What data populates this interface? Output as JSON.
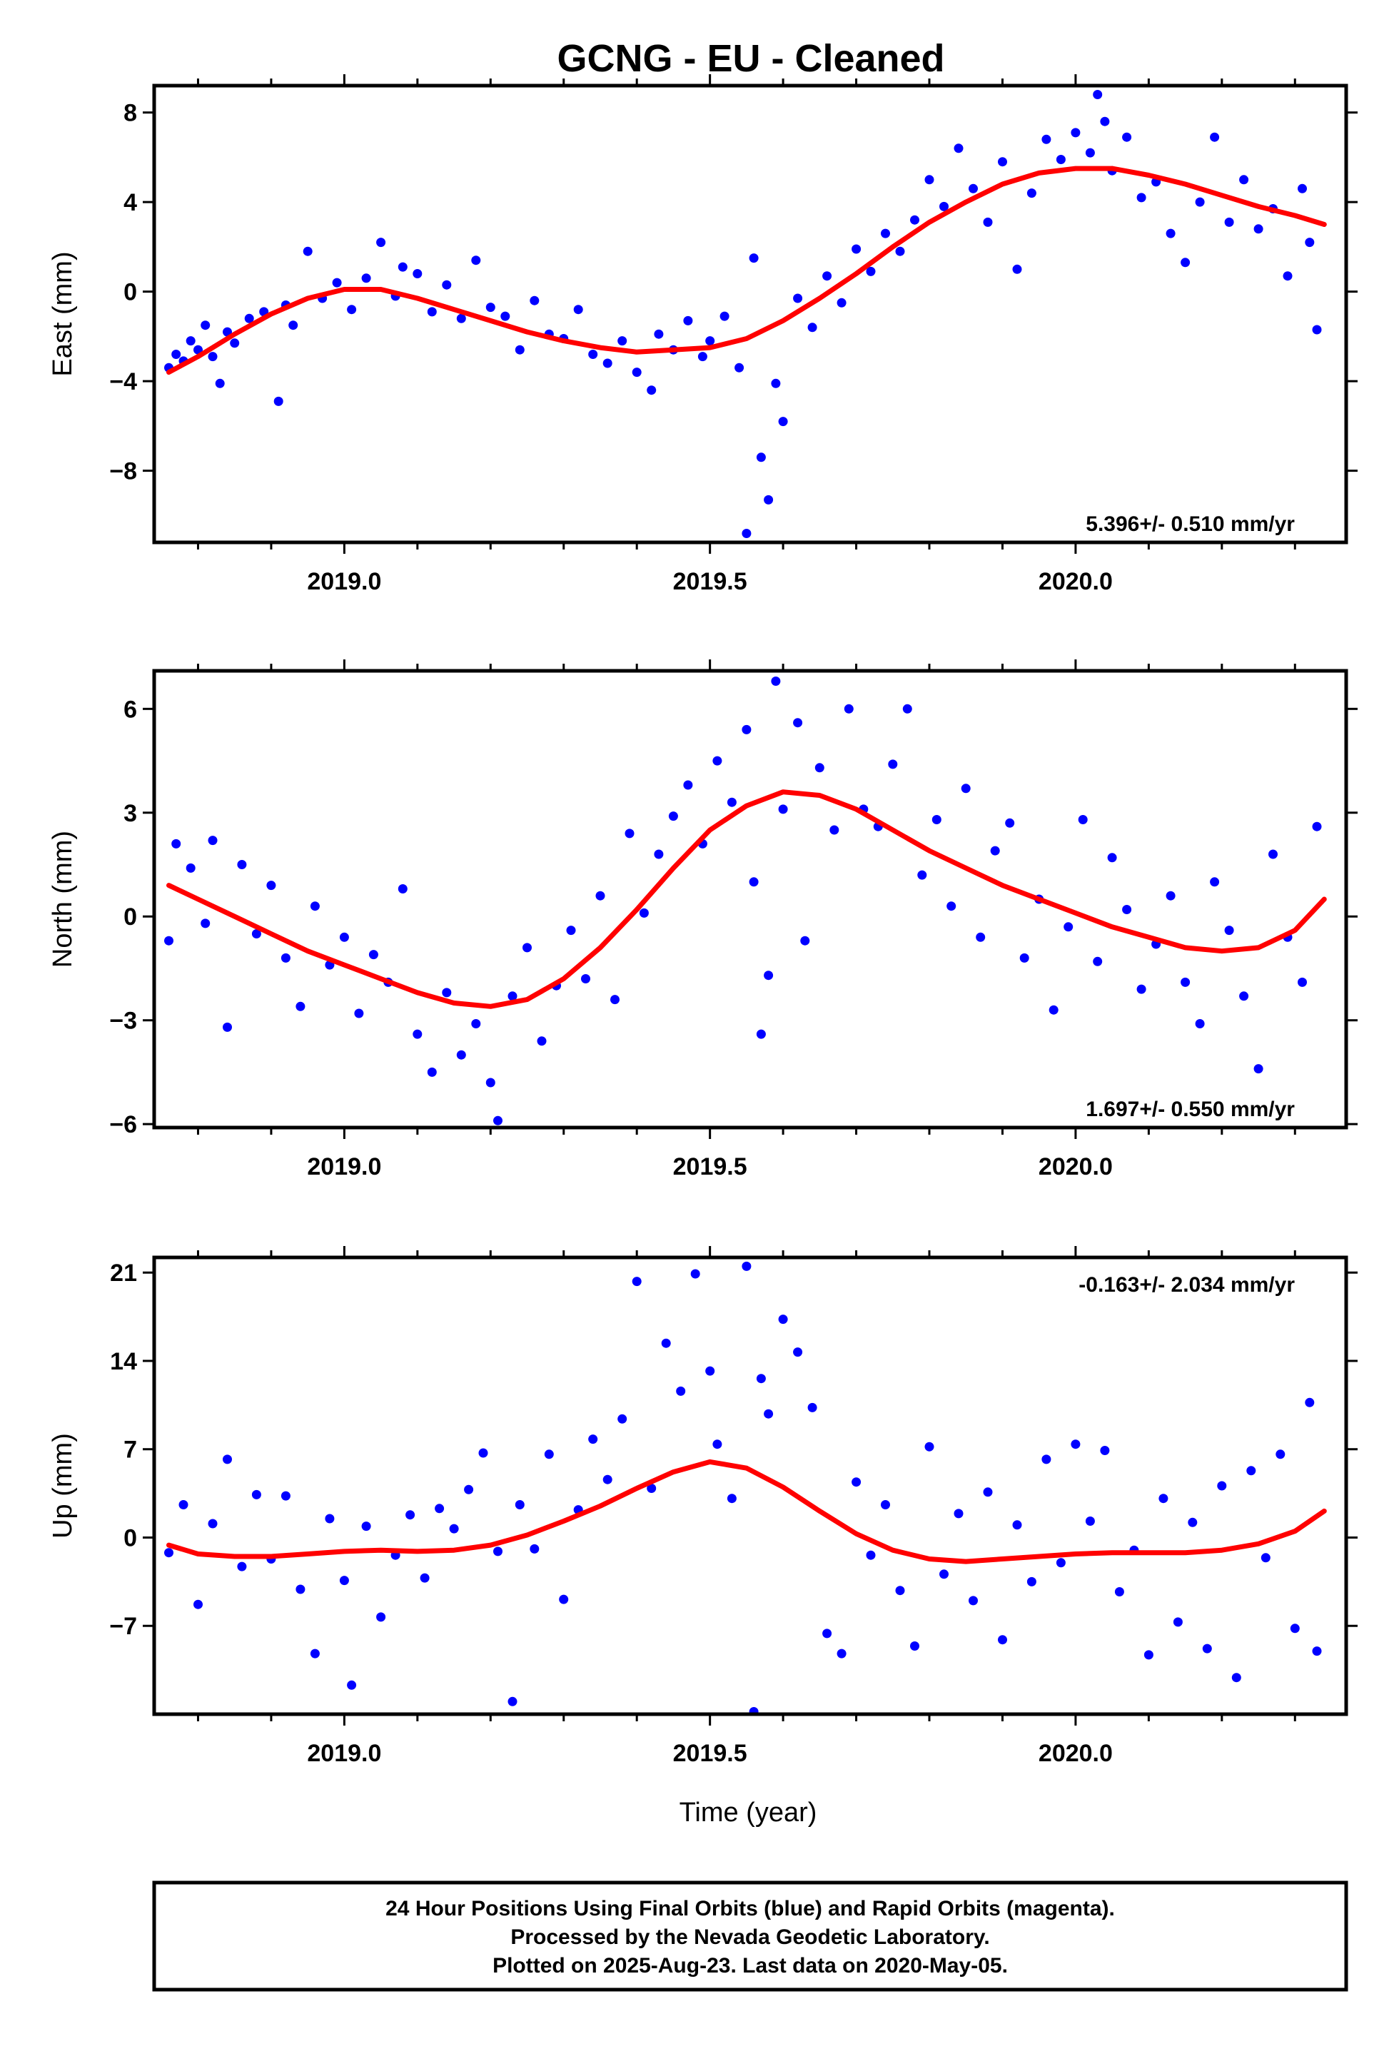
{
  "title": "GCNG  - EU - Cleaned",
  "footer": {
    "lines": [
      "24 Hour Positions Using Final Orbits (blue) and Rapid Orbits (magenta).",
      "Processed by the Nevada Geodetic Laboratory.",
      "Plotted on 2025-Aug-23. Last data on 2020-May-05."
    ]
  },
  "colors": {
    "points": "#0000ff",
    "fit": "#ff0000",
    "frame": "#000000"
  },
  "chart_data": [
    {
      "type": "scatter",
      "component": "East",
      "ylabel": "East (mm)",
      "xlabel": "",
      "xlim": [
        2018.74,
        2020.37
      ],
      "ylim": [
        -11.2,
        9.2
      ],
      "xticks": [
        2019.0,
        2019.5,
        2020.0
      ],
      "xtick_labels": [
        "2019.0",
        "2019.5",
        "2020.0"
      ],
      "yticks": [
        -8,
        -4,
        0,
        4,
        8
      ],
      "ytick_labels": [
        "−8",
        "−4",
        "0",
        "4",
        "8"
      ],
      "rate": "5.396+/- 0.510 mm/yr",
      "rate_position": "bottom-right",
      "grid": false,
      "series": [
        {
          "kind": "points",
          "x": [
            2018.76,
            2018.77,
            2018.78,
            2018.79,
            2018.8,
            2018.81,
            2018.82,
            2018.83,
            2018.84,
            2018.85,
            2018.87,
            2018.89,
            2018.91,
            2018.92,
            2018.93,
            2018.95,
            2018.97,
            2018.99,
            2019.01,
            2019.03,
            2019.05,
            2019.07,
            2019.08,
            2019.1,
            2019.12,
            2019.14,
            2019.16,
            2019.18,
            2019.2,
            2019.22,
            2019.24,
            2019.26,
            2019.28,
            2019.3,
            2019.32,
            2019.34,
            2019.36,
            2019.38,
            2019.4,
            2019.42,
            2019.43,
            2019.45,
            2019.47,
            2019.49,
            2019.5,
            2019.52,
            2019.54,
            2019.55,
            2019.56,
            2019.57,
            2019.58,
            2019.59,
            2019.6,
            2019.62,
            2019.64,
            2019.66,
            2019.68,
            2019.7,
            2019.72,
            2019.74,
            2019.76,
            2019.78,
            2019.8,
            2019.82,
            2019.84,
            2019.86,
            2019.88,
            2019.9,
            2019.92,
            2019.94,
            2019.96,
            2019.98,
            2020.0,
            2020.02,
            2020.03,
            2020.04,
            2020.05,
            2020.07,
            2020.09,
            2020.11,
            2020.13,
            2020.15,
            2020.17,
            2020.19,
            2020.21,
            2020.23,
            2020.25,
            2020.27,
            2020.29,
            2020.31,
            2020.32,
            2020.33
          ],
          "y": [
            -3.4,
            -2.8,
            -3.1,
            -2.2,
            -2.6,
            -1.5,
            -2.9,
            -4.1,
            -1.8,
            -2.3,
            -1.2,
            -0.9,
            -4.9,
            -0.6,
            -1.5,
            1.8,
            -0.3,
            0.4,
            -0.8,
            0.6,
            2.2,
            -0.2,
            1.1,
            0.8,
            -0.9,
            0.3,
            -1.2,
            1.4,
            -0.7,
            -1.1,
            -2.6,
            -0.4,
            -1.9,
            -2.1,
            -0.8,
            -2.8,
            -3.2,
            -2.2,
            -3.6,
            -4.4,
            -1.9,
            -2.6,
            -1.3,
            -2.9,
            -2.2,
            -1.1,
            -3.4,
            -10.8,
            1.5,
            -7.4,
            -9.3,
            -4.1,
            -5.8,
            -0.3,
            -1.6,
            0.7,
            -0.5,
            1.9,
            0.9,
            2.6,
            1.8,
            3.2,
            5.0,
            3.8,
            6.4,
            4.6,
            3.1,
            5.8,
            1.0,
            4.4,
            6.8,
            5.9,
            7.1,
            6.2,
            8.8,
            7.6,
            5.4,
            6.9,
            4.2,
            4.9,
            2.6,
            1.3,
            4.0,
            6.9,
            3.1,
            5.0,
            2.8,
            3.7,
            0.7,
            4.6,
            2.2,
            -1.7
          ]
        },
        {
          "kind": "fit",
          "x": [
            2018.76,
            2018.8,
            2018.85,
            2018.9,
            2018.95,
            2019.0,
            2019.05,
            2019.1,
            2019.15,
            2019.2,
            2019.25,
            2019.3,
            2019.35,
            2019.4,
            2019.45,
            2019.5,
            2019.55,
            2019.6,
            2019.65,
            2019.7,
            2019.75,
            2019.8,
            2019.85,
            2019.9,
            2019.95,
            2020.0,
            2020.05,
            2020.1,
            2020.15,
            2020.2,
            2020.25,
            2020.3,
            2020.34
          ],
          "y": [
            -3.6,
            -2.9,
            -1.9,
            -1.0,
            -0.3,
            0.1,
            0.1,
            -0.3,
            -0.8,
            -1.3,
            -1.8,
            -2.2,
            -2.5,
            -2.7,
            -2.6,
            -2.5,
            -2.1,
            -1.3,
            -0.3,
            0.8,
            2.0,
            3.1,
            4.0,
            4.8,
            5.3,
            5.5,
            5.5,
            5.2,
            4.8,
            4.3,
            3.8,
            3.4,
            3.0
          ]
        }
      ]
    },
    {
      "type": "scatter",
      "component": "North",
      "ylabel": "North (mm)",
      "xlabel": "",
      "xlim": [
        2018.74,
        2020.37
      ],
      "ylim": [
        -6.1,
        7.1
      ],
      "xticks": [
        2019.0,
        2019.5,
        2020.0
      ],
      "xtick_labels": [
        "2019.0",
        "2019.5",
        "2020.0"
      ],
      "yticks": [
        -6,
        -3,
        0,
        3,
        6
      ],
      "ytick_labels": [
        "−6",
        "−3",
        "0",
        "3",
        "6"
      ],
      "rate": "1.697+/- 0.550 mm/yr",
      "rate_position": "bottom-right",
      "grid": false,
      "series": [
        {
          "kind": "points",
          "x": [
            2018.76,
            2018.77,
            2018.79,
            2018.81,
            2018.82,
            2018.84,
            2018.86,
            2018.88,
            2018.9,
            2018.92,
            2018.94,
            2018.96,
            2018.98,
            2019.0,
            2019.02,
            2019.04,
            2019.06,
            2019.08,
            2019.1,
            2019.12,
            2019.14,
            2019.16,
            2019.18,
            2019.2,
            2019.21,
            2019.23,
            2019.25,
            2019.27,
            2019.29,
            2019.31,
            2019.33,
            2019.35,
            2019.37,
            2019.39,
            2019.41,
            2019.43,
            2019.45,
            2019.47,
            2019.49,
            2019.51,
            2019.53,
            2019.55,
            2019.56,
            2019.57,
            2019.58,
            2019.59,
            2019.6,
            2019.62,
            2019.63,
            2019.65,
            2019.67,
            2019.69,
            2019.71,
            2019.73,
            2019.75,
            2019.77,
            2019.79,
            2019.81,
            2019.83,
            2019.85,
            2019.87,
            2019.89,
            2019.91,
            2019.93,
            2019.95,
            2019.97,
            2019.99,
            2020.01,
            2020.03,
            2020.05,
            2020.07,
            2020.09,
            2020.11,
            2020.13,
            2020.15,
            2020.17,
            2020.19,
            2020.21,
            2020.23,
            2020.25,
            2020.27,
            2020.29,
            2020.31,
            2020.33
          ],
          "y": [
            -0.7,
            2.1,
            1.4,
            -0.2,
            2.2,
            -3.2,
            1.5,
            -0.5,
            0.9,
            -1.2,
            -2.6,
            0.3,
            -1.4,
            -0.6,
            -2.8,
            -1.1,
            -1.9,
            0.8,
            -3.4,
            -4.5,
            -2.2,
            -4.0,
            -3.1,
            -4.8,
            -5.9,
            -2.3,
            -0.9,
            -3.6,
            -2.0,
            -0.4,
            -1.8,
            0.6,
            -2.4,
            2.4,
            0.1,
            1.8,
            2.9,
            3.8,
            2.1,
            4.5,
            3.3,
            5.4,
            1.0,
            -3.4,
            -1.7,
            6.8,
            3.1,
            5.6,
            -0.7,
            4.3,
            2.5,
            6.0,
            3.1,
            2.6,
            4.4,
            6.0,
            1.2,
            2.8,
            0.3,
            3.7,
            -0.6,
            1.9,
            2.7,
            -1.2,
            0.5,
            -2.7,
            -0.3,
            2.8,
            -1.3,
            1.7,
            0.2,
            -2.1,
            -0.8,
            0.6,
            -1.9,
            -3.1,
            1.0,
            -0.4,
            -2.3,
            -4.4,
            1.8,
            -0.6,
            -1.9,
            2.6
          ]
        },
        {
          "kind": "fit",
          "x": [
            2018.76,
            2018.8,
            2018.85,
            2018.9,
            2018.95,
            2019.0,
            2019.05,
            2019.1,
            2019.15,
            2019.2,
            2019.25,
            2019.3,
            2019.35,
            2019.4,
            2019.45,
            2019.5,
            2019.55,
            2019.6,
            2019.65,
            2019.7,
            2019.75,
            2019.8,
            2019.85,
            2019.9,
            2019.95,
            2020.0,
            2020.05,
            2020.1,
            2020.15,
            2020.2,
            2020.25,
            2020.3,
            2020.34
          ],
          "y": [
            0.9,
            0.5,
            0.0,
            -0.5,
            -1.0,
            -1.4,
            -1.8,
            -2.2,
            -2.5,
            -2.6,
            -2.4,
            -1.8,
            -0.9,
            0.2,
            1.4,
            2.5,
            3.2,
            3.6,
            3.5,
            3.1,
            2.5,
            1.9,
            1.4,
            0.9,
            0.5,
            0.1,
            -0.3,
            -0.6,
            -0.9,
            -1.0,
            -0.9,
            -0.4,
            0.5
          ]
        }
      ]
    },
    {
      "type": "scatter",
      "component": "Up",
      "ylabel": "Up (mm)",
      "xlabel": "Time (year)",
      "xlim": [
        2018.74,
        2020.37
      ],
      "ylim": [
        -14,
        22.2
      ],
      "xticks": [
        2019.0,
        2019.5,
        2020.0
      ],
      "xtick_labels": [
        "2019.0",
        "2019.5",
        "2020.0"
      ],
      "yticks": [
        -7,
        0,
        7,
        14,
        21
      ],
      "ytick_labels": [
        "−7",
        "0",
        "7",
        "14",
        "21"
      ],
      "rate": "-0.163+/- 2.034 mm/yr",
      "rate_position": "top-right",
      "grid": false,
      "series": [
        {
          "kind": "points",
          "x": [
            2018.76,
            2018.78,
            2018.8,
            2018.82,
            2018.84,
            2018.86,
            2018.88,
            2018.9,
            2018.92,
            2018.94,
            2018.96,
            2018.98,
            2019.0,
            2019.01,
            2019.03,
            2019.05,
            2019.07,
            2019.09,
            2019.11,
            2019.13,
            2019.15,
            2019.17,
            2019.19,
            2019.21,
            2019.23,
            2019.24,
            2019.26,
            2019.28,
            2019.3,
            2019.32,
            2019.34,
            2019.36,
            2019.38,
            2019.4,
            2019.42,
            2019.44,
            2019.46,
            2019.48,
            2019.5,
            2019.51,
            2019.53,
            2019.55,
            2019.56,
            2019.57,
            2019.58,
            2019.6,
            2019.62,
            2019.64,
            2019.66,
            2019.68,
            2019.7,
            2019.72,
            2019.74,
            2019.76,
            2019.78,
            2019.8,
            2019.82,
            2019.84,
            2019.86,
            2019.88,
            2019.9,
            2019.92,
            2019.94,
            2019.96,
            2019.98,
            2020.0,
            2020.02,
            2020.04,
            2020.06,
            2020.08,
            2020.1,
            2020.12,
            2020.14,
            2020.16,
            2020.18,
            2020.2,
            2020.22,
            2020.24,
            2020.26,
            2020.28,
            2020.3,
            2020.32,
            2020.33
          ],
          "y": [
            -1.2,
            2.6,
            -5.3,
            1.1,
            6.2,
            -2.3,
            3.4,
            -1.7,
            3.3,
            -4.1,
            -9.2,
            1.5,
            -3.4,
            -11.7,
            0.9,
            -6.3,
            -1.4,
            1.8,
            -3.2,
            2.3,
            0.7,
            3.8,
            6.7,
            -1.1,
            -13.0,
            2.6,
            -0.9,
            6.6,
            -4.9,
            2.2,
            7.8,
            4.6,
            9.4,
            20.3,
            3.9,
            15.4,
            11.6,
            20.9,
            13.2,
            7.4,
            3.1,
            21.5,
            -13.8,
            12.6,
            9.8,
            17.3,
            14.7,
            10.3,
            -7.6,
            -9.2,
            4.4,
            -1.4,
            2.6,
            -4.2,
            -8.6,
            7.2,
            -2.9,
            1.9,
            -5.0,
            3.6,
            -8.1,
            1.0,
            -3.5,
            6.2,
            -2.0,
            7.4,
            1.3,
            6.9,
            -4.3,
            -1.0,
            -9.3,
            3.1,
            -6.7,
            1.2,
            -8.8,
            4.1,
            -11.1,
            5.3,
            -1.6,
            6.6,
            -7.2,
            10.7,
            -9.0
          ]
        },
        {
          "kind": "fit",
          "x": [
            2018.76,
            2018.8,
            2018.85,
            2018.9,
            2018.95,
            2019.0,
            2019.05,
            2019.1,
            2019.15,
            2019.2,
            2019.25,
            2019.3,
            2019.35,
            2019.4,
            2019.45,
            2019.5,
            2019.55,
            2019.6,
            2019.65,
            2019.7,
            2019.75,
            2019.8,
            2019.85,
            2019.9,
            2019.95,
            2020.0,
            2020.05,
            2020.1,
            2020.15,
            2020.2,
            2020.25,
            2020.3,
            2020.34
          ],
          "y": [
            -0.6,
            -1.3,
            -1.5,
            -1.5,
            -1.3,
            -1.1,
            -1.0,
            -1.1,
            -1.0,
            -0.6,
            0.2,
            1.3,
            2.5,
            3.9,
            5.2,
            6.0,
            5.5,
            4.0,
            2.1,
            0.3,
            -1.0,
            -1.7,
            -1.9,
            -1.7,
            -1.5,
            -1.3,
            -1.2,
            -1.2,
            -1.2,
            -1.0,
            -0.5,
            0.5,
            2.1
          ]
        }
      ]
    }
  ]
}
